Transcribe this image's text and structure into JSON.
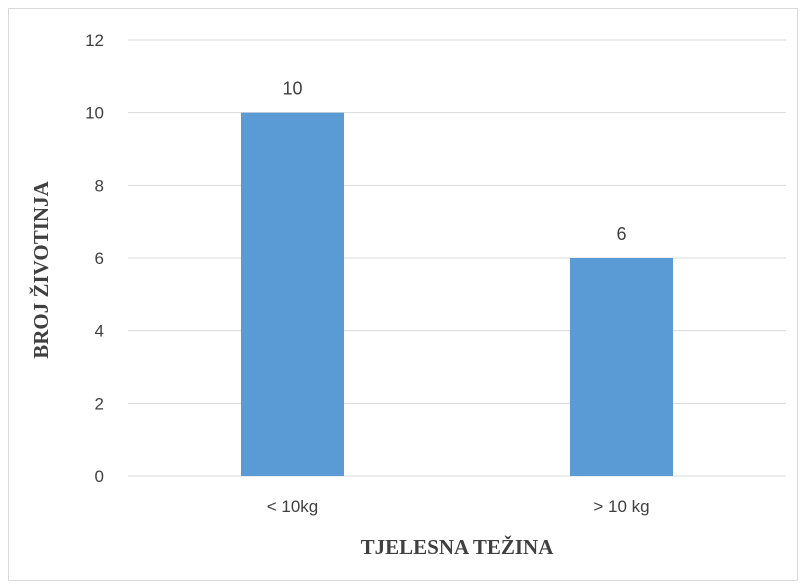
{
  "chart_data": {
    "type": "bar",
    "categories": [
      "< 10kg",
      "> 10 kg"
    ],
    "values": [
      10,
      6
    ],
    "data_labels": [
      "10",
      "6"
    ],
    "title": "",
    "xlabel": "TJELESNA TEŽINA",
    "ylabel": "BROJ ŽIVOTINJA",
    "ylim": [
      0,
      12
    ],
    "yticks": [
      0,
      2,
      4,
      6,
      8,
      10,
      12
    ],
    "grid": true,
    "legend": "none",
    "bar_color": "#5b9bd5",
    "grid_color": "#d9d9d9",
    "text_color": "#404040"
  }
}
